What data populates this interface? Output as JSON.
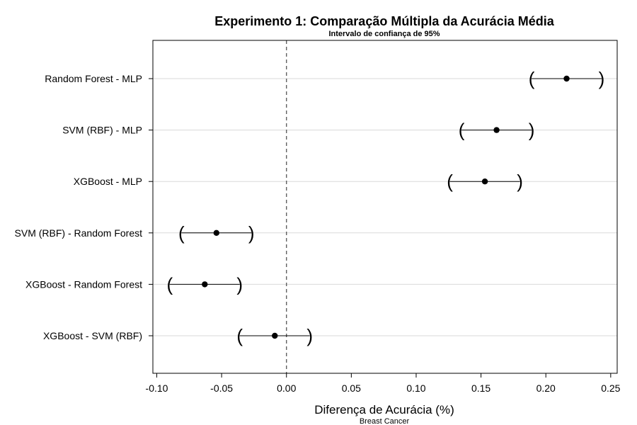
{
  "chart_data": {
    "type": "interval",
    "title": "Experimento 1: Comparação Múltipla da Acurácia Média",
    "subtitle": "Intervalo de confiança de 95%",
    "xlabel": "Diferença de Acurácia (%)",
    "caption": "Breast Cancer",
    "xlim": [
      -0.103,
      0.255
    ],
    "xticks": [
      -0.1,
      -0.05,
      0.0,
      0.05,
      0.1,
      0.15,
      0.2,
      0.25
    ],
    "xtick_labels": [
      "-0.10",
      "-0.05",
      "0.00",
      "0.05",
      "0.10",
      "0.15",
      "0.20",
      "0.25"
    ],
    "reference_line": 0.0,
    "grid": "horizontal",
    "comparisons": [
      {
        "label": "Random Forest - MLP",
        "estimate": 0.216,
        "lower": 0.189,
        "upper": 0.243
      },
      {
        "label": "SVM (RBF) - MLP",
        "estimate": 0.162,
        "lower": 0.135,
        "upper": 0.189
      },
      {
        "label": "XGBoost - MLP",
        "estimate": 0.153,
        "lower": 0.126,
        "upper": 0.18
      },
      {
        "label": "SVM (RBF) - Random Forest",
        "estimate": -0.054,
        "lower": -0.081,
        "upper": -0.027
      },
      {
        "label": "XGBoost - Random Forest",
        "estimate": -0.063,
        "lower": -0.09,
        "upper": -0.036
      },
      {
        "label": "XGBoost - SVM (RBF)",
        "estimate": -0.009,
        "lower": -0.036,
        "upper": 0.018
      }
    ]
  }
}
